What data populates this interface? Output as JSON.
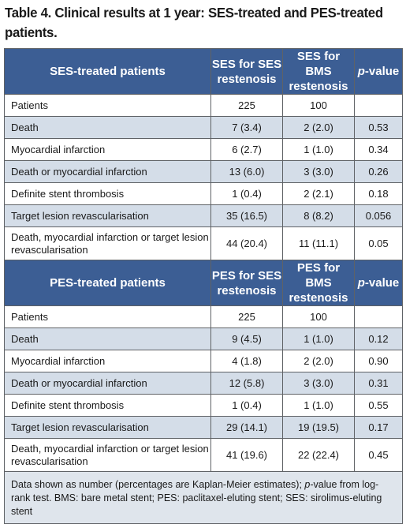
{
  "title": "Table 4. Clinical results at 1 year: SES-treated and PES-treated patients.",
  "sections": [
    {
      "group_label": "SES-treated patients",
      "col1_header": "SES for SES restenosis",
      "col2_header": "SES for BMS restenosis",
      "pvalue_prefix": "p",
      "pvalue_suffix": "-value",
      "rows": [
        {
          "label": "Patients",
          "col1": "225",
          "col2": "100",
          "p": ""
        },
        {
          "label": "Death",
          "col1": "7 (3.4)",
          "col2": "2 (2.0)",
          "p": "0.53"
        },
        {
          "label": "Myocardial infarction",
          "col1": "6 (2.7)",
          "col2": "1 (1.0)",
          "p": "0.34"
        },
        {
          "label": "Death or myocardial infarction",
          "col1": "13 (6.0)",
          "col2": "3 (3.0)",
          "p": "0.26"
        },
        {
          "label": "Definite stent thrombosis",
          "col1": "1 (0.4)",
          "col2": "2 (2.1)",
          "p": "0.18"
        },
        {
          "label": "Target lesion revascularisation",
          "col1": "35 (16.5)",
          "col2": "8 (8.2)",
          "p": "0.056"
        },
        {
          "label": "Death, myocardial infarction or target lesion revascularisation",
          "col1": "44 (20.4)",
          "col2": "11 (11.1)",
          "p": "0.05"
        }
      ]
    },
    {
      "group_label": "PES-treated patients",
      "col1_header": "PES for SES restenosis",
      "col2_header": "PES for BMS restenosis",
      "pvalue_prefix": "p",
      "pvalue_suffix": "-value",
      "rows": [
        {
          "label": "Patients",
          "col1": "225",
          "col2": "100",
          "p": ""
        },
        {
          "label": "Death",
          "col1": "9 (4.5)",
          "col2": "1 (1.0)",
          "p": "0.12"
        },
        {
          "label": "Myocardial infarction",
          "col1": "4 (1.8)",
          "col2": "2 (2.0)",
          "p": "0.90"
        },
        {
          "label": "Death or myocardial infarction",
          "col1": "12 (5.8)",
          "col2": "3 (3.0)",
          "p": "0.31"
        },
        {
          "label": "Definite stent thrombosis",
          "col1": "1 (0.4)",
          "col2": "1 (1.0)",
          "p": "0.55"
        },
        {
          "label": "Target lesion revascularisation",
          "col1": "29 (14.1)",
          "col2": "19 (19.5)",
          "p": "0.17"
        },
        {
          "label": "Death, myocardial infarction or target lesion revascularisation",
          "col1": "41 (19.6)",
          "col2": "22 (22.4)",
          "p": "0.45"
        }
      ]
    }
  ],
  "footnote": {
    "part1": "Data shown as number (percentages are Kaplan-Meier estimates); ",
    "italic": "p",
    "part2": "-value from log-rank test. BMS: bare metal stent; PES: paclitaxel-eluting stent; SES: sirolimus-eluting stent"
  },
  "colors": {
    "header_bg": "#3c5e94",
    "shade_bg": "#d4dde8",
    "footnote_bg": "#dfe5ec"
  }
}
